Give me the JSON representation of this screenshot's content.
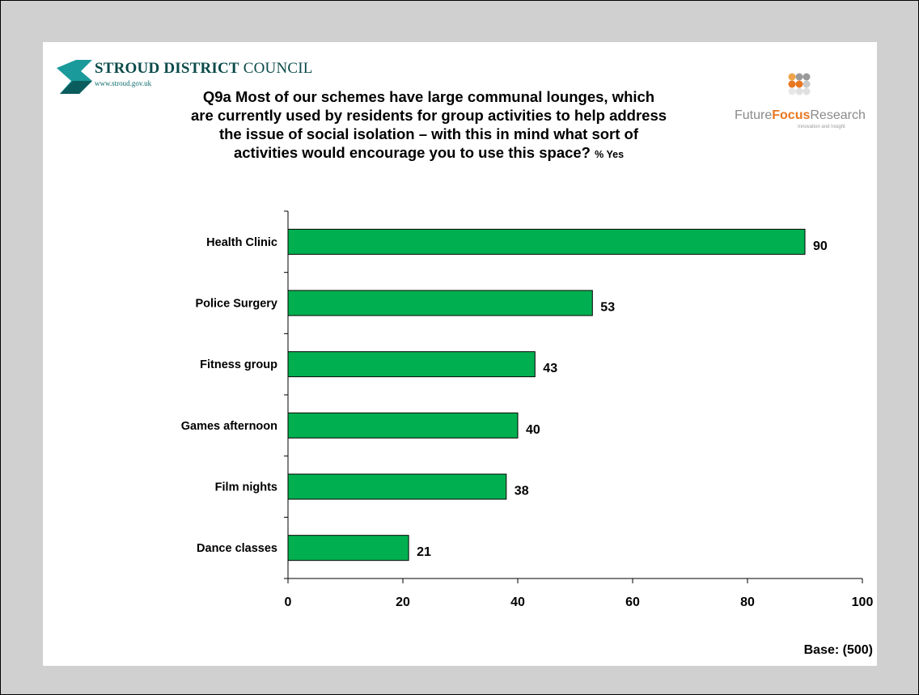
{
  "header": {
    "org_name_bold": "STROUD DISTRICT",
    "org_name_rest": "COUNCIL",
    "org_url": "www.stroud.gov.uk",
    "partner_name_a": "Future",
    "partner_name_b": "Focus",
    "partner_name_c": "Research",
    "partner_tagline": "Innovation and Insight"
  },
  "title_lines": [
    "Q9a Most of our schemes have large communal lounges, which",
    "are currently used by residents for group activities to help address",
    "the issue of social isolation – with this in mind what sort of",
    "activities would encourage you to use this space?"
  ],
  "title_unit": "% Yes",
  "footer": {
    "base": "Base: (500)"
  },
  "colors": {
    "bar": "#00b050",
    "bar_outline": "#000000",
    "background": "#d0d0d0",
    "panel": "#ffffff"
  },
  "chart_data": {
    "type": "bar",
    "orientation": "horizontal",
    "categories": [
      "Health Clinic",
      "Police Surgery",
      "Fitness group",
      "Games afternoon",
      "Film nights",
      "Dance classes"
    ],
    "values": [
      90,
      53,
      43,
      40,
      38,
      21
    ],
    "xlim": [
      0,
      100
    ],
    "xticks": [
      "0",
      "20",
      "40",
      "60",
      "80",
      "100"
    ],
    "grid": false,
    "legend": "none"
  }
}
